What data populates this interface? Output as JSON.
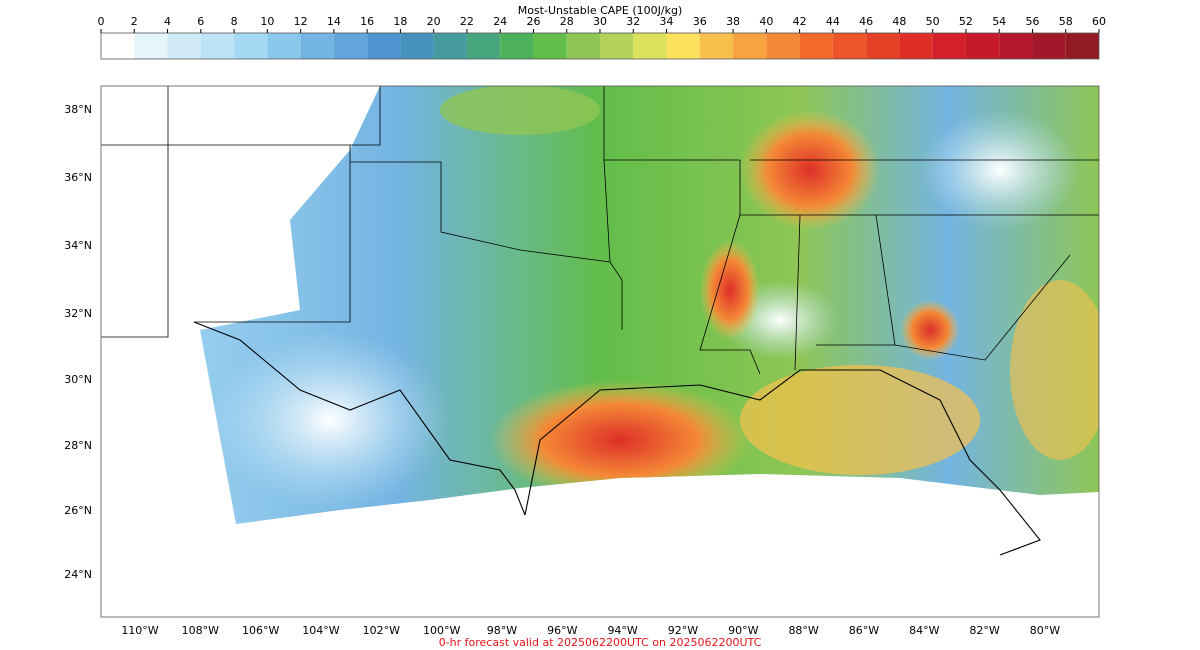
{
  "colorbar": {
    "title": "Most-Unstable CAPE (100J/kg)",
    "ticks": [
      0,
      2,
      4,
      6,
      8,
      10,
      12,
      14,
      16,
      18,
      20,
      22,
      24,
      26,
      28,
      30,
      32,
      34,
      36,
      38,
      40,
      42,
      44,
      46,
      48,
      50,
      52,
      54,
      56,
      58,
      60
    ],
    "colors": [
      "#ffffff",
      "#e6f4fc",
      "#d0eaf8",
      "#bde3f6",
      "#a6daf4",
      "#8cc8ec",
      "#74b4e2",
      "#61a5dc",
      "#4e95d2",
      "#4691bd",
      "#459b9e",
      "#47a67e",
      "#4cb15a",
      "#62bd4a",
      "#8ec655",
      "#b4d25c",
      "#dde25d",
      "#fce15c",
      "#f8c04b",
      "#f6a340",
      "#f48836",
      "#f16a2b",
      "#ec5528",
      "#e54127",
      "#dd2f28",
      "#d51f2a",
      "#c61a2a",
      "#b4182a",
      "#a2172a",
      "#921b23"
    ]
  },
  "map": {
    "lat_labels": [
      "38°N",
      "36°N",
      "34°N",
      "32°N",
      "30°N",
      "28°N",
      "26°N",
      "24°N"
    ],
    "lon_labels": [
      "110°W",
      "108°W",
      "106°W",
      "104°W",
      "102°W",
      "100°W",
      "98°W",
      "96°W",
      "94°W",
      "92°W",
      "90°W",
      "88°W",
      "86°W",
      "84°W",
      "82°W",
      "80°W"
    ]
  },
  "footer": "0-hr forecast valid at 2025062200UTC on 2025062200UTC"
}
